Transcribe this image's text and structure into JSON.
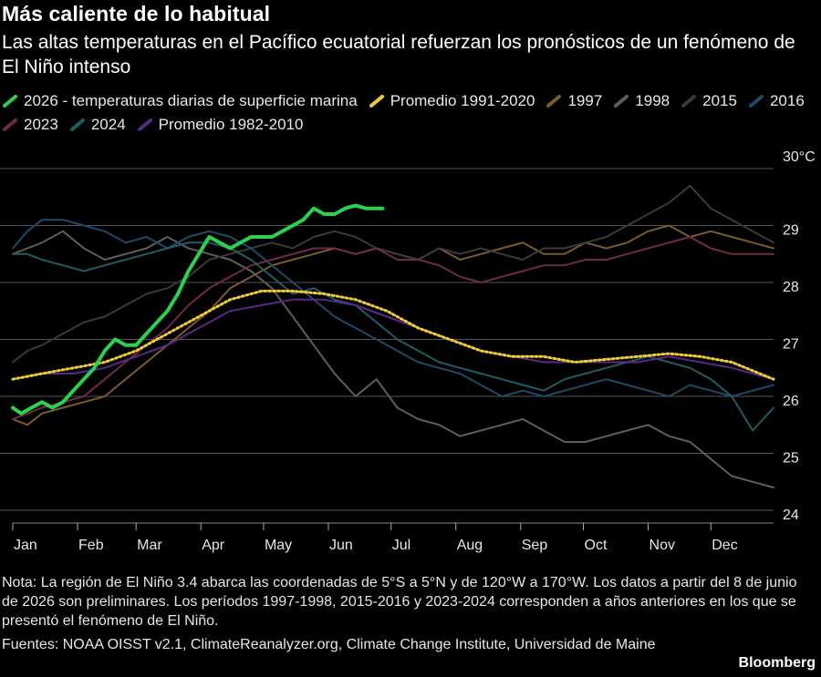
{
  "header": {
    "title": "Más caliente de lo habitual",
    "subtitle": "Las altas temperaturas en el Pacífico ecuatorial refuerzan los pronósticos de un fenómeno de El Niño intenso"
  },
  "footer": {
    "note": "Nota: La región de El Niño 3.4 abarca las coordenadas de 5°S a 5°N y de 120°W a 170°W. Los datos a partir del 8 de junio de 2026 son preliminares. Los períodos 1997-1998, 2015-2016 y 2023-2024 corresponden a años anteriores en los que se presentó el fenómeno de El Niño.",
    "sources": "Fuentes: NOAA OISST v2.1, ClimateReanalyzer.org, Climate Change Institute, Universidad de Maine",
    "brand": "Bloomberg"
  },
  "chart_data": {
    "type": "line",
    "title": "Más caliente de lo habitual",
    "subtitle": "Las altas temperaturas en el Pacífico ecuatorial refuerzan los pronósticos de un fenómeno de El Niño intenso",
    "xlabel": "",
    "ylabel": "",
    "x_unit": "day of year",
    "xlim": [
      1,
      365
    ],
    "ylim": [
      24,
      30
    ],
    "y_unit_label": "30°C",
    "y_ticks": [
      24,
      25,
      26,
      27,
      28,
      29,
      30
    ],
    "y_tick_labels": [
      "24",
      "25",
      "26",
      "27",
      "28",
      "29",
      "30°C"
    ],
    "x_ticks": [
      1,
      32,
      60,
      91,
      121,
      152,
      182,
      213,
      244,
      274,
      305,
      335
    ],
    "x_tick_labels": [
      "Jan",
      "Feb",
      "Mar",
      "Apr",
      "May",
      "Jun",
      "Jul",
      "Aug",
      "Sep",
      "Oct",
      "Nov",
      "Dec"
    ],
    "grid": true,
    "legend_position": "top",
    "series": [
      {
        "name": "1997",
        "color": "#7a5a2e",
        "x": [
          1,
          8,
          15,
          25,
          35,
          45,
          55,
          65,
          75,
          85,
          95,
          105,
          115,
          125,
          135,
          145,
          155,
          165,
          175,
          185,
          195,
          205,
          215,
          225,
          235,
          245,
          255,
          265,
          275,
          285,
          295,
          305,
          315,
          325,
          335,
          345,
          355,
          365
        ],
        "y": [
          25.6,
          25.5,
          25.7,
          25.8,
          25.9,
          26.0,
          26.3,
          26.6,
          26.9,
          27.2,
          27.5,
          27.9,
          28.1,
          28.3,
          28.4,
          28.5,
          28.6,
          28.5,
          28.6,
          28.5,
          28.4,
          28.6,
          28.4,
          28.5,
          28.6,
          28.7,
          28.5,
          28.5,
          28.7,
          28.6,
          28.7,
          28.9,
          29.0,
          28.8,
          28.9,
          28.8,
          28.7,
          28.6
        ]
      },
      {
        "name": "1998",
        "color": "#5e5e5e",
        "x": [
          1,
          8,
          15,
          25,
          35,
          45,
          55,
          65,
          75,
          85,
          95,
          105,
          115,
          125,
          135,
          145,
          155,
          165,
          175,
          185,
          195,
          205,
          215,
          225,
          235,
          245,
          255,
          265,
          275,
          285,
          295,
          305,
          315,
          325,
          335,
          345,
          355,
          365
        ],
        "y": [
          28.5,
          28.6,
          28.7,
          28.9,
          28.6,
          28.4,
          28.5,
          28.6,
          28.8,
          28.6,
          28.5,
          28.4,
          28.2,
          27.9,
          27.4,
          26.9,
          26.4,
          26.0,
          26.3,
          25.8,
          25.6,
          25.5,
          25.3,
          25.4,
          25.5,
          25.6,
          25.4,
          25.2,
          25.2,
          25.3,
          25.4,
          25.5,
          25.3,
          25.2,
          24.9,
          24.6,
          24.5,
          24.4
        ]
      },
      {
        "name": "2015",
        "color": "#3a3a3a",
        "x": [
          1,
          8,
          15,
          25,
          35,
          45,
          55,
          65,
          75,
          85,
          95,
          105,
          115,
          125,
          135,
          145,
          155,
          165,
          175,
          185,
          195,
          205,
          215,
          225,
          235,
          245,
          255,
          265,
          275,
          285,
          295,
          305,
          315,
          325,
          335,
          345,
          355,
          365
        ],
        "y": [
          26.6,
          26.8,
          26.9,
          27.1,
          27.3,
          27.4,
          27.6,
          27.8,
          27.9,
          28.1,
          28.4,
          28.5,
          28.6,
          28.7,
          28.6,
          28.8,
          28.9,
          28.8,
          28.6,
          28.5,
          28.4,
          28.6,
          28.5,
          28.6,
          28.5,
          28.4,
          28.6,
          28.6,
          28.7,
          28.8,
          29.0,
          29.2,
          29.4,
          29.7,
          29.3,
          29.1,
          28.9,
          28.7
        ]
      },
      {
        "name": "2016",
        "color": "#1d4a66",
        "x": [
          1,
          8,
          15,
          25,
          35,
          45,
          55,
          65,
          75,
          85,
          95,
          105,
          115,
          125,
          135,
          145,
          155,
          165,
          175,
          185,
          195,
          205,
          215,
          225,
          235,
          245,
          255,
          265,
          275,
          285,
          295,
          305,
          315,
          325,
          335,
          345,
          355,
          365
        ],
        "y": [
          28.6,
          28.9,
          29.1,
          29.1,
          29.0,
          28.9,
          28.7,
          28.8,
          28.6,
          28.8,
          28.9,
          28.8,
          28.6,
          28.3,
          28.0,
          27.7,
          27.4,
          27.2,
          27.0,
          26.8,
          26.6,
          26.5,
          26.4,
          26.2,
          26.0,
          26.1,
          26.0,
          26.1,
          26.2,
          26.3,
          26.2,
          26.1,
          26.0,
          26.2,
          26.1,
          26.0,
          26.1,
          26.2
        ]
      },
      {
        "name": "2023",
        "color": "#6e2a4a",
        "x": [
          1,
          8,
          15,
          25,
          35,
          45,
          55,
          65,
          75,
          85,
          95,
          105,
          115,
          125,
          135,
          145,
          155,
          165,
          175,
          185,
          195,
          205,
          215,
          225,
          235,
          245,
          255,
          265,
          275,
          285,
          295,
          305,
          315,
          325,
          335,
          345,
          355,
          365
        ],
        "y": [
          25.6,
          25.7,
          25.8,
          25.9,
          26.0,
          26.3,
          26.6,
          26.9,
          27.2,
          27.6,
          27.9,
          28.1,
          28.3,
          28.4,
          28.5,
          28.6,
          28.6,
          28.5,
          28.6,
          28.4,
          28.4,
          28.3,
          28.1,
          28.0,
          28.1,
          28.2,
          28.3,
          28.3,
          28.4,
          28.4,
          28.5,
          28.6,
          28.7,
          28.8,
          28.6,
          28.5,
          28.5,
          28.5
        ]
      },
      {
        "name": "2024",
        "color": "#1f5c63",
        "x": [
          1,
          8,
          15,
          25,
          35,
          45,
          55,
          65,
          75,
          85,
          95,
          105,
          115,
          125,
          135,
          145,
          155,
          165,
          175,
          185,
          195,
          205,
          215,
          225,
          235,
          245,
          255,
          265,
          275,
          285,
          295,
          305,
          315,
          325,
          335,
          345,
          355,
          365
        ],
        "y": [
          28.5,
          28.5,
          28.4,
          28.3,
          28.2,
          28.3,
          28.4,
          28.5,
          28.6,
          28.7,
          28.7,
          28.6,
          28.4,
          28.1,
          27.8,
          27.9,
          27.7,
          27.6,
          27.3,
          27.0,
          26.8,
          26.6,
          26.5,
          26.4,
          26.3,
          26.2,
          26.1,
          26.3,
          26.4,
          26.5,
          26.6,
          26.7,
          26.6,
          26.5,
          26.3,
          26.0,
          25.4,
          25.8
        ]
      },
      {
        "name": "Promedio 1982-2010",
        "color": "#5a2a86",
        "x": [
          1,
          15,
          30,
          45,
          60,
          75,
          90,
          105,
          120,
          135,
          150,
          165,
          180,
          195,
          210,
          225,
          240,
          255,
          270,
          285,
          300,
          315,
          330,
          345,
          365
        ],
        "y": [
          26.3,
          26.4,
          26.4,
          26.5,
          26.7,
          26.9,
          27.2,
          27.5,
          27.6,
          27.7,
          27.7,
          27.6,
          27.4,
          27.2,
          27.0,
          26.8,
          26.7,
          26.6,
          26.6,
          26.6,
          26.6,
          26.7,
          26.6,
          26.5,
          26.3
        ]
      },
      {
        "name": "Promedio 1991-2020",
        "color": "#f2cc38",
        "x": [
          1,
          15,
          30,
          45,
          60,
          75,
          90,
          105,
          120,
          135,
          150,
          165,
          180,
          195,
          210,
          225,
          240,
          255,
          270,
          285,
          300,
          315,
          330,
          345,
          365
        ],
        "y": [
          26.3,
          26.4,
          26.5,
          26.6,
          26.8,
          27.1,
          27.4,
          27.7,
          27.85,
          27.85,
          27.8,
          27.7,
          27.5,
          27.2,
          27.0,
          26.8,
          26.7,
          26.7,
          26.6,
          26.65,
          26.7,
          26.75,
          26.7,
          26.6,
          26.3
        ]
      },
      {
        "name": "2026 - temperaturas diarias de superficie marina",
        "color": "#2bd14f",
        "x": [
          1,
          5,
          10,
          15,
          20,
          25,
          30,
          35,
          40,
          45,
          50,
          55,
          60,
          65,
          70,
          75,
          80,
          85,
          90,
          95,
          100,
          105,
          110,
          115,
          120,
          125,
          130,
          135,
          140,
          145,
          150,
          155,
          160,
          165,
          170,
          175,
          178
        ],
        "y": [
          25.8,
          25.7,
          25.8,
          25.9,
          25.8,
          25.9,
          26.1,
          26.3,
          26.5,
          26.8,
          27.0,
          26.9,
          26.9,
          27.1,
          27.3,
          27.5,
          27.8,
          28.2,
          28.5,
          28.8,
          28.7,
          28.6,
          28.7,
          28.8,
          28.8,
          28.8,
          28.9,
          29.0,
          29.1,
          29.3,
          29.2,
          29.2,
          29.3,
          29.35,
          29.3,
          29.3,
          29.3
        ]
      }
    ]
  }
}
